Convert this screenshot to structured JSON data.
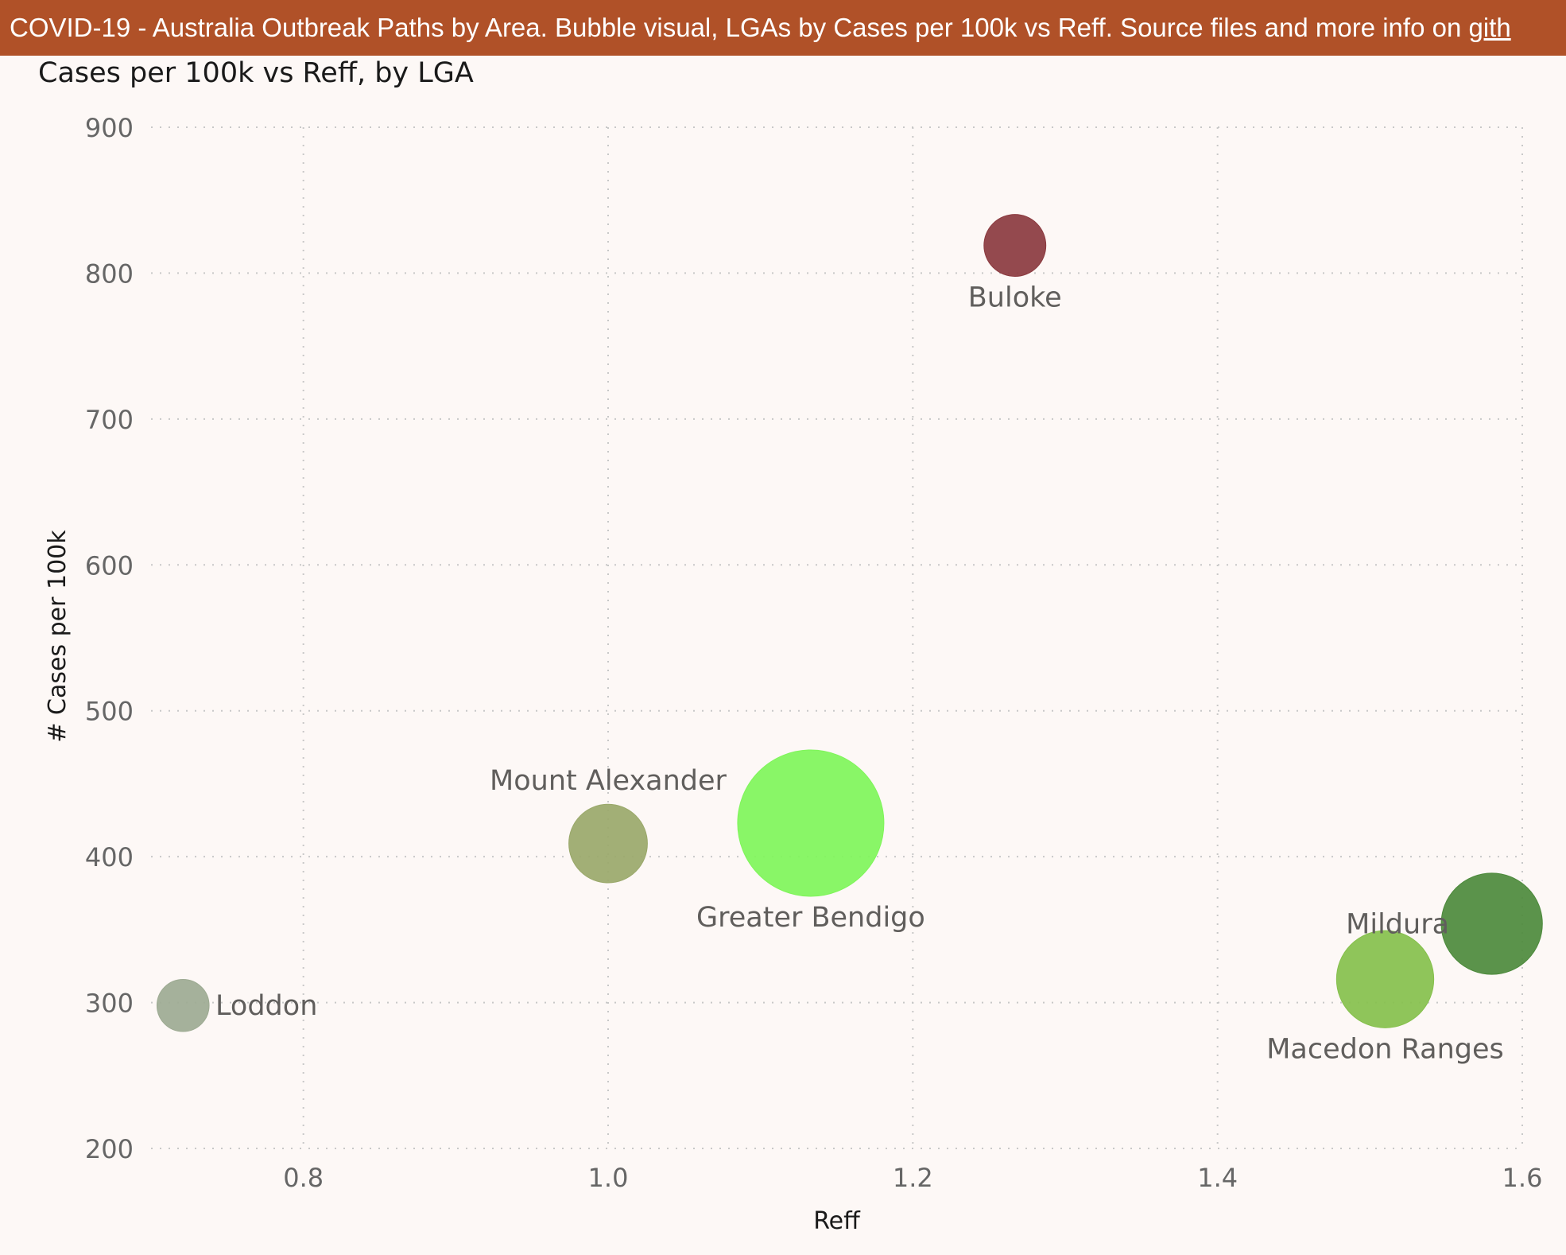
{
  "header": {
    "banner_text": "COVID-19  - Australia Outbreak Paths by Area.  Bubble visual, LGAs by Cases per 100k vs Reff. Source files and more info on ",
    "banner_link": "gith"
  },
  "chart_data": {
    "type": "scatter",
    "title": "Cases per 100k vs Reff, by LGA",
    "xlabel": "Reff",
    "ylabel": "# Cases per 100k",
    "xlim": [
      0.7,
      1.6
    ],
    "ylim": [
      200,
      900
    ],
    "x_ticks": [
      "0.8",
      "1.0",
      "1.2",
      "1.4",
      "1.6"
    ],
    "y_ticks": [
      "200",
      "300",
      "400",
      "500",
      "600",
      "700",
      "800",
      "900"
    ],
    "grid": true,
    "points": [
      {
        "name": "Buloke",
        "x": 1.267,
        "y": 819,
        "size": 0.08,
        "color": "#8b3a3f"
      },
      {
        "name": "Mount Alexander",
        "x": 1.0,
        "y": 409,
        "size": 0.18,
        "color": "#9aa86a"
      },
      {
        "name": "Greater Bendigo",
        "x": 1.133,
        "y": 423,
        "size": 1.0,
        "color": "#7ff55a"
      },
      {
        "name": "Loddon",
        "x": 0.721,
        "y": 298,
        "size": 0.04,
        "color": "#9daa92"
      },
      {
        "name": "Mildura",
        "x": 1.58,
        "y": 354,
        "size": 0.38,
        "color": "#4d8a3c"
      },
      {
        "name": "Macedon Ranges",
        "x": 1.51,
        "y": 316,
        "size": 0.34,
        "color": "#86c04c"
      }
    ]
  }
}
